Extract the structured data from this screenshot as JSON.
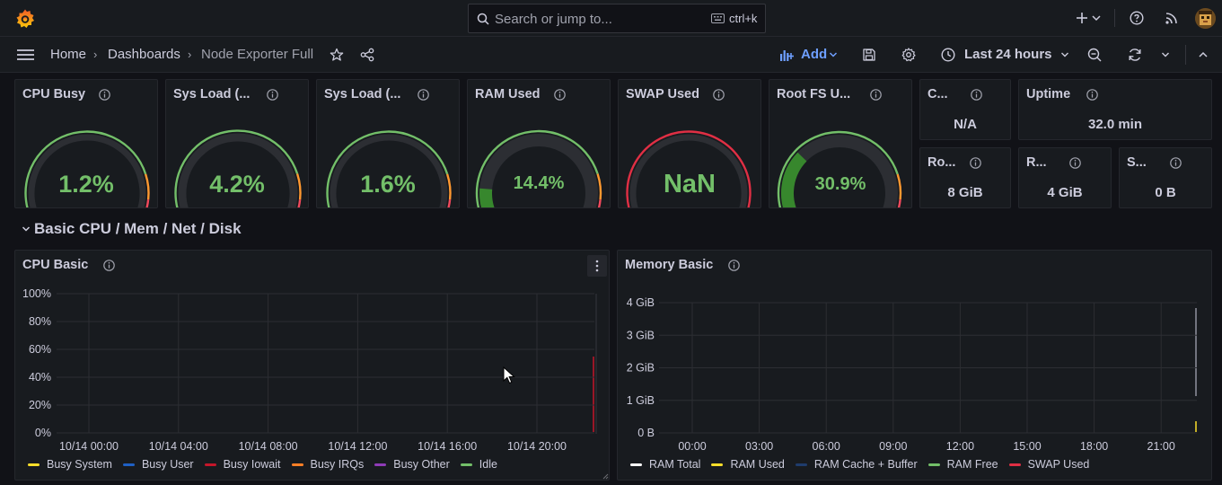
{
  "topbar": {
    "search_placeholder": "Search or jump to...",
    "shortcut": "ctrl+k",
    "icons": [
      "grafana-logo-icon",
      "search-icon",
      "keyboard-icon",
      "plus-icon",
      "chevron-down-icon",
      "help-icon",
      "rss-icon",
      "avatar"
    ]
  },
  "nav": {
    "breadcrumb": [
      "Home",
      "Dashboards",
      "Node Exporter Full"
    ],
    "add_label": "Add",
    "time_range": "Last 24 hours"
  },
  "stats": {
    "cpu_busy": {
      "title": "CPU Busy",
      "value": "1.2%",
      "level": 0.012
    },
    "sys_load_5": {
      "title": "Sys Load (...",
      "value": "4.2%",
      "level": 0.042
    },
    "sys_load_15": {
      "title": "Sys Load (...",
      "value": "1.6%",
      "level": 0.016
    },
    "ram_used": {
      "title": "RAM Used",
      "value": "14.4%",
      "level": 0.144
    },
    "swap_used": {
      "title": "SWAP Used",
      "value": "NaN",
      "level": 0
    },
    "root_fs": {
      "title": "Root FS U...",
      "value": "30.9%",
      "level": 0.309
    },
    "cpu_cores": {
      "title": "C...",
      "value": "N/A"
    },
    "uptime": {
      "title": "Uptime",
      "value": "32.0 min"
    },
    "rootfs_total": {
      "title": "Ro...",
      "value": "8 GiB"
    },
    "ram_total": {
      "title": "R...",
      "value": "4 GiB"
    },
    "swap_total": {
      "title": "S...",
      "value": "0 B"
    }
  },
  "row": {
    "title": "Basic CPU / Mem / Net / Disk"
  },
  "cpu_basic": {
    "title": "CPU Basic",
    "legend": [
      {
        "name": "Busy System",
        "color": "#fade2a"
      },
      {
        "name": "Busy User",
        "color": "#1f60c4"
      },
      {
        "name": "Busy Iowait",
        "color": "#c4162a"
      },
      {
        "name": "Busy IRQs",
        "color": "#ff7f26"
      },
      {
        "name": "Busy Other",
        "color": "#8f3bb8"
      },
      {
        "name": "Idle",
        "color": "#73bf69"
      }
    ]
  },
  "memory_basic": {
    "title": "Memory Basic",
    "legend": [
      {
        "name": "RAM Total",
        "color": "#ffffff"
      },
      {
        "name": "RAM Used",
        "color": "#fade2a"
      },
      {
        "name": "RAM Cache + Buffer",
        "color": "#1f3c6c"
      },
      {
        "name": "RAM Free",
        "color": "#73bf69"
      },
      {
        "name": "SWAP Used",
        "color": "#e02f44"
      }
    ]
  },
  "chart_data": [
    {
      "type": "line",
      "title": "CPU Basic",
      "x": [
        "10/14 00:00",
        "10/14 04:00",
        "10/14 08:00",
        "10/14 12:00",
        "10/14 16:00",
        "10/14 20:00"
      ],
      "y_ticks": [
        "100%",
        "80%",
        "60%",
        "40%",
        "20%",
        "0%"
      ],
      "ylim": [
        0,
        100
      ],
      "series": [
        {
          "name": "Busy System",
          "values": [
            null,
            null,
            null,
            null,
            null,
            null
          ]
        },
        {
          "name": "Busy User",
          "values": [
            null,
            null,
            null,
            null,
            null,
            null
          ]
        },
        {
          "name": "Busy Iowait",
          "values": [
            null,
            null,
            null,
            null,
            null,
            null
          ]
        },
        {
          "name": "Busy IRQs",
          "values": [
            null,
            null,
            null,
            null,
            null,
            null
          ]
        },
        {
          "name": "Busy Other",
          "values": [
            null,
            null,
            null,
            null,
            null,
            null
          ]
        },
        {
          "name": "Idle",
          "values": [
            null,
            null,
            null,
            null,
            null,
            null
          ]
        }
      ],
      "grid": true,
      "legend": "bottom"
    },
    {
      "type": "area",
      "title": "Memory Basic",
      "x": [
        "00:00",
        "03:00",
        "06:00",
        "09:00",
        "12:00",
        "15:00",
        "18:00",
        "21:00"
      ],
      "y_ticks": [
        "4 GiB",
        "3 GiB",
        "2 GiB",
        "1 GiB",
        "0 B"
      ],
      "ylim": [
        0,
        4
      ],
      "series": [
        {
          "name": "RAM Total",
          "values": [
            null,
            null,
            null,
            null,
            null,
            null,
            null,
            null
          ]
        },
        {
          "name": "RAM Used",
          "values": [
            null,
            null,
            null,
            null,
            null,
            null,
            null,
            null
          ]
        },
        {
          "name": "RAM Cache + Buffer",
          "values": [
            null,
            null,
            null,
            null,
            null,
            null,
            null,
            null
          ]
        },
        {
          "name": "RAM Free",
          "values": [
            null,
            null,
            null,
            null,
            null,
            null,
            null,
            null
          ]
        },
        {
          "name": "SWAP Used",
          "values": [
            null,
            null,
            null,
            null,
            null,
            null,
            null,
            null
          ]
        }
      ],
      "grid": true,
      "legend": "bottom"
    }
  ]
}
